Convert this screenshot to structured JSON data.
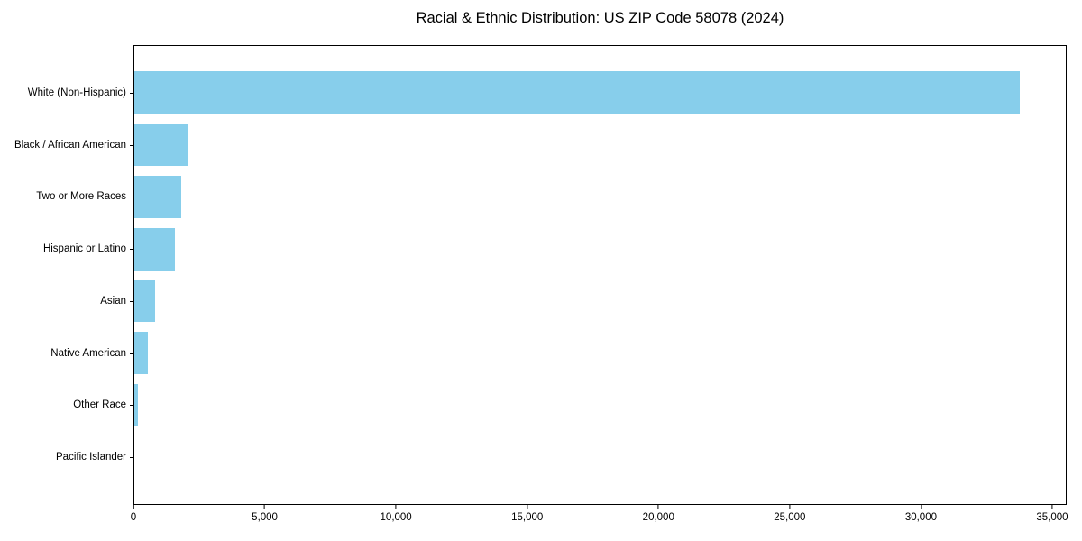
{
  "title": "Racial & Ethnic Distribution: US ZIP Code 58078 (2024)",
  "colors": {
    "bar": "#87CEEB",
    "axis": "#000000",
    "text": "#000000",
    "background": "#FFFFFF"
  },
  "chart_data": {
    "type": "bar",
    "orientation": "horizontal",
    "title": "Racial & Ethnic Distribution: US ZIP Code 58078 (2024)",
    "categories": [
      "White (Non-Hispanic)",
      "Black / African American",
      "Two or More Races",
      "Hispanic or Latino",
      "Asian",
      "Native American",
      "Other Race",
      "Pacific Islander"
    ],
    "values": [
      33800,
      2070,
      1790,
      1560,
      780,
      530,
      140,
      0
    ],
    "xlabel": "",
    "ylabel": "",
    "xlim": [
      0,
      35550
    ],
    "xticks": [
      0,
      5000,
      10000,
      15000,
      20000,
      25000,
      30000,
      35000
    ],
    "xtick_labels": [
      "0",
      "5,000",
      "10,000",
      "15,000",
      "20,000",
      "25,000",
      "30,000",
      "35,000"
    ],
    "bar_color": "#87CEEB",
    "grid": false,
    "legend_position": "none"
  }
}
